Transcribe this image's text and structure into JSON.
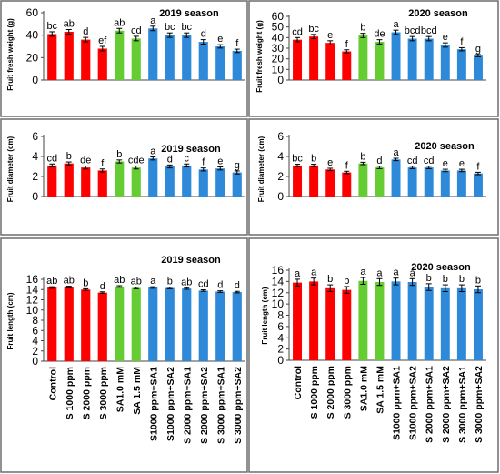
{
  "colors": {
    "red": "#ff0000",
    "green": "#66cc33",
    "blue": "#2e8ad8",
    "frame": "#6d6d6d",
    "axis": "#444444"
  },
  "chart_data": [
    {
      "type": "bar",
      "panel": "weight-2019",
      "title": "2019 season",
      "xlabel": "",
      "ylabel": "Fruit fresh weight (g)",
      "ylim": [
        0,
        60
      ],
      "yticks": [
        0,
        20,
        40,
        60
      ],
      "values": [
        41,
        43,
        36,
        28,
        44,
        37,
        46,
        40,
        40,
        34,
        30,
        26
      ],
      "errors": [
        2,
        2,
        2,
        2,
        2,
        2,
        2,
        2,
        2,
        2,
        1.5,
        1.5
      ],
      "letters": [
        "bc",
        "ab",
        "d",
        "ef",
        "ab",
        "cd",
        "a",
        "bc",
        "bc",
        "d",
        "e",
        "f"
      ]
    },
    {
      "type": "bar",
      "panel": "weight-2020",
      "title": "2020 season",
      "xlabel": "",
      "ylabel": "Fruit fresh weight (g)",
      "ylim": [
        0,
        60
      ],
      "yticks": [
        0,
        10,
        20,
        30,
        40,
        50,
        60
      ],
      "values": [
        38,
        41,
        35,
        27,
        42,
        36,
        45,
        39,
        39,
        33,
        29,
        23
      ],
      "errors": [
        2,
        2,
        2,
        1.5,
        2,
        2,
        2,
        2,
        2,
        2,
        1.5,
        1
      ],
      "letters": [
        "cd",
        "bc",
        "e",
        "f",
        "b",
        "de",
        "a",
        "bcd",
        "bcd",
        "e",
        "f",
        "g"
      ]
    },
    {
      "type": "bar",
      "panel": "diameter-2019",
      "title": "2019 season",
      "xlabel": "",
      "ylabel": "Fruit diameter (cm)",
      "ylim": [
        0,
        6
      ],
      "yticks": [
        0,
        2,
        4,
        6
      ],
      "values": [
        3.1,
        3.3,
        2.9,
        2.6,
        3.5,
        2.9,
        3.8,
        3.0,
        3.1,
        2.7,
        2.8,
        2.4
      ],
      "errors": [
        0.15,
        0.15,
        0.15,
        0.15,
        0.15,
        0.15,
        0.15,
        0.15,
        0.15,
        0.15,
        0.15,
        0.15
      ],
      "letters": [
        "cd",
        "b",
        "de",
        "f",
        "b",
        "cde",
        "a",
        "d",
        "c",
        "f",
        "e",
        "g"
      ]
    },
    {
      "type": "bar",
      "panel": "diameter-2020",
      "title": "2020 season",
      "xlabel": "",
      "ylabel": "Fruit diameter (cm)",
      "ylim": [
        0,
        6
      ],
      "yticks": [
        0,
        2,
        4,
        6
      ],
      "values": [
        3.1,
        3.1,
        2.7,
        2.4,
        3.3,
        2.9,
        3.7,
        2.9,
        2.9,
        2.6,
        2.6,
        2.3
      ],
      "errors": [
        0.12,
        0.12,
        0.12,
        0.12,
        0.12,
        0.12,
        0.12,
        0.12,
        0.12,
        0.12,
        0.12,
        0.12
      ],
      "letters": [
        "bc",
        "b",
        "e",
        "f",
        "b",
        "d",
        "a",
        "cd",
        "cd",
        "e",
        "e",
        "f"
      ]
    },
    {
      "type": "bar",
      "panel": "length-2019",
      "title": "2019 season",
      "xlabel": "",
      "ylabel": "Fruit length (cm)",
      "ylim": [
        0,
        16
      ],
      "yticks": [
        0,
        2,
        4,
        6,
        8,
        10,
        12,
        14,
        16
      ],
      "values": [
        14.4,
        14.5,
        14.0,
        13.4,
        14.6,
        14.3,
        14.4,
        14.3,
        14.2,
        13.8,
        13.6,
        13.5
      ],
      "errors": [
        0.15,
        0.15,
        0.15,
        0.15,
        0.15,
        0.15,
        0.15,
        0.15,
        0.15,
        0.15,
        0.15,
        0.15
      ],
      "letters": [
        "ab",
        "ab",
        "b",
        "d",
        "ab",
        "ab",
        "a",
        "b",
        "ab",
        "cd",
        "d",
        "d"
      ],
      "categories": [
        "Control",
        "S 1000 ppm",
        "S 2000 ppm",
        "S 3000 ppm",
        "SA1.0 mM",
        "SA 1.5 mM",
        "S1000 ppm+SA1",
        "S1000 ppm+SA2",
        "S 2000 ppm+SA1",
        "S 2000 ppm+SA2",
        "S 3000 ppm+SA1",
        "S 3000 ppm+SA2"
      ]
    },
    {
      "type": "bar",
      "panel": "length-2020",
      "title": "2020 season",
      "xlabel": "",
      "ylabel": "Fruit length (cm)",
      "ylim": [
        0,
        16
      ],
      "yticks": [
        0,
        2,
        4,
        6,
        8,
        10,
        12,
        14,
        16
      ],
      "values": [
        13.8,
        14.0,
        12.8,
        12.5,
        14.1,
        13.9,
        14.0,
        13.9,
        13.0,
        12.8,
        12.8,
        12.6
      ],
      "errors": [
        0.6,
        0.6,
        0.6,
        0.6,
        0.6,
        0.6,
        0.6,
        0.6,
        0.6,
        0.6,
        0.6,
        0.6
      ],
      "letters": [
        "a",
        "a",
        "b",
        "b",
        "a",
        "a",
        "a",
        "a",
        "b",
        "b",
        "b",
        "b"
      ],
      "categories": [
        "Control",
        "S 1000 ppm",
        "S 2000 ppm",
        "S 3000 ppm",
        "SA1.0 mM",
        "SA 1.5 mM",
        "S1000 ppm+SA1",
        "S1000 ppm+SA2",
        "S 2000 ppm+SA1",
        "S 2000 ppm+SA2",
        "S 3000 ppm+SA1",
        "S 3000 ppm+SA2"
      ]
    }
  ]
}
